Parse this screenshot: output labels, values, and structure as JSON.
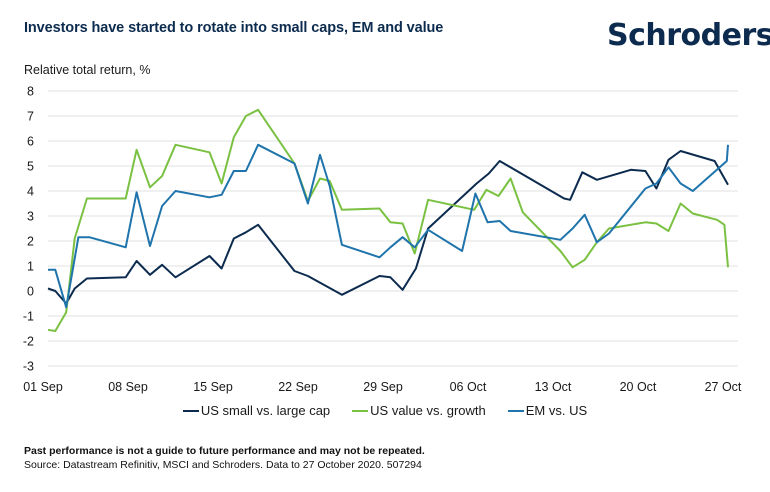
{
  "header": {
    "title": "Investors have started to rotate into small caps, EM and value",
    "logo": "Schroders"
  },
  "footer": {
    "disclaimer": "Past performance is not a guide to future performance and may not be repeated.",
    "source": "Source: Datastream Refinitiv, MSCI and Schroders. Data to 27 October 2020. 507294"
  },
  "chart_data": {
    "type": "line",
    "title": "Investors have started to rotate into small caps, EM and value",
    "xlabel": "",
    "ylabel": "Relative total return, %",
    "ylim": [
      -3,
      8
    ],
    "yticks": [
      8,
      7,
      6,
      5,
      4,
      3,
      2,
      1,
      0,
      -1,
      -2,
      -3
    ],
    "x_unit": "days since 01 Sep 2020",
    "xlim": [
      0,
      56
    ],
    "xticks": [
      {
        "day": 0,
        "label": "01 Sep"
      },
      {
        "day": 7,
        "label": "08 Sep"
      },
      {
        "day": 14,
        "label": "15 Sep"
      },
      {
        "day": 21,
        "label": "22 Sep"
      },
      {
        "day": 28,
        "label": "29 Sep"
      },
      {
        "day": 35,
        "label": "06 Oct"
      },
      {
        "day": 42,
        "label": "13 Oct"
      },
      {
        "day": 49,
        "label": "20 Oct"
      },
      {
        "day": 56,
        "label": "27 Oct"
      }
    ],
    "grid": true,
    "legend_position": "bottom-center",
    "series": [
      {
        "name": "US small vs. large cap",
        "color": "#0c2b4e",
        "points": [
          [
            0,
            0.1
          ],
          [
            0.6,
            0.0
          ],
          [
            1.5,
            -0.5
          ],
          [
            2.2,
            0.1
          ],
          [
            3.2,
            0.5
          ],
          [
            6.4,
            0.55
          ],
          [
            7.3,
            1.2
          ],
          [
            8.4,
            0.65
          ],
          [
            9.4,
            1.05
          ],
          [
            10.5,
            0.55
          ],
          [
            13.3,
            1.4
          ],
          [
            14.3,
            0.9
          ],
          [
            15.3,
            2.1
          ],
          [
            16.3,
            2.35
          ],
          [
            17.3,
            2.65
          ],
          [
            20.3,
            0.8
          ],
          [
            21.4,
            0.6
          ],
          [
            24.2,
            -0.15
          ],
          [
            27.3,
            0.6
          ],
          [
            28.2,
            0.55
          ],
          [
            29.2,
            0.05
          ],
          [
            30.3,
            0.9
          ],
          [
            31.3,
            2.5
          ],
          [
            35.3,
            4.3
          ],
          [
            36.3,
            4.7
          ],
          [
            37.2,
            5.2
          ],
          [
            42.5,
            3.7
          ],
          [
            43.0,
            3.65
          ],
          [
            44.0,
            4.75
          ],
          [
            45.2,
            4.45
          ],
          [
            48.0,
            4.85
          ],
          [
            49.2,
            4.8
          ],
          [
            50.1,
            4.1
          ],
          [
            51.1,
            5.25
          ],
          [
            52.1,
            5.6
          ],
          [
            54.9,
            5.2
          ],
          [
            56,
            4.25
          ]
        ]
      },
      {
        "name": "US value vs. growth",
        "color": "#7ac142",
        "points": [
          [
            0,
            -1.55
          ],
          [
            0.6,
            -1.6
          ],
          [
            1.5,
            -0.85
          ],
          [
            2.2,
            2.1
          ],
          [
            3.2,
            3.7
          ],
          [
            6.4,
            3.7
          ],
          [
            7.3,
            5.65
          ],
          [
            8.4,
            4.15
          ],
          [
            9.4,
            4.6
          ],
          [
            10.5,
            5.85
          ],
          [
            13.3,
            5.55
          ],
          [
            14.3,
            4.3
          ],
          [
            15.3,
            6.15
          ],
          [
            16.3,
            7.0
          ],
          [
            17.3,
            7.25
          ],
          [
            20.3,
            5.1
          ],
          [
            21.4,
            3.6
          ],
          [
            22.4,
            4.5
          ],
          [
            23.2,
            4.4
          ],
          [
            24.2,
            3.25
          ],
          [
            27.3,
            3.3
          ],
          [
            28.2,
            2.75
          ],
          [
            29.2,
            2.7
          ],
          [
            30.2,
            1.5
          ],
          [
            31.3,
            3.65
          ],
          [
            35.1,
            3.25
          ],
          [
            36.1,
            4.05
          ],
          [
            37.1,
            3.8
          ],
          [
            38.1,
            4.5
          ],
          [
            39.1,
            3.15
          ],
          [
            42.2,
            1.6
          ],
          [
            43.2,
            0.95
          ],
          [
            44.2,
            1.25
          ],
          [
            45.2,
            1.95
          ],
          [
            46.2,
            2.5
          ],
          [
            49.2,
            2.75
          ],
          [
            50.1,
            2.7
          ],
          [
            51.1,
            2.4
          ],
          [
            52.1,
            3.5
          ],
          [
            53.1,
            3.1
          ],
          [
            55.1,
            2.85
          ],
          [
            55.7,
            2.65
          ],
          [
            56,
            0.95
          ]
        ]
      },
      {
        "name": "EM vs. US",
        "color": "#1f74ac",
        "points": [
          [
            0,
            0.85
          ],
          [
            0.6,
            0.85
          ],
          [
            1.5,
            -0.65
          ],
          [
            2.5,
            2.15
          ],
          [
            3.4,
            2.15
          ],
          [
            6.4,
            1.75
          ],
          [
            7.3,
            3.95
          ],
          [
            8.4,
            1.8
          ],
          [
            9.4,
            3.4
          ],
          [
            10.5,
            4.0
          ],
          [
            13.3,
            3.75
          ],
          [
            14.3,
            3.85
          ],
          [
            15.3,
            4.8
          ],
          [
            16.3,
            4.8
          ],
          [
            17.3,
            5.85
          ],
          [
            20.3,
            5.1
          ],
          [
            21.4,
            3.5
          ],
          [
            22.4,
            5.45
          ],
          [
            23.2,
            4.2
          ],
          [
            24.2,
            1.85
          ],
          [
            27.3,
            1.35
          ],
          [
            28.2,
            1.75
          ],
          [
            29.2,
            2.15
          ],
          [
            30.2,
            1.75
          ],
          [
            31.3,
            2.45
          ],
          [
            34.1,
            1.6
          ],
          [
            35.2,
            3.9
          ],
          [
            36.2,
            2.75
          ],
          [
            37.2,
            2.8
          ],
          [
            38.1,
            2.4
          ],
          [
            42.2,
            2.05
          ],
          [
            43.2,
            2.5
          ],
          [
            44.2,
            3.05
          ],
          [
            45.2,
            1.95
          ],
          [
            46.2,
            2.3
          ],
          [
            49.2,
            4.1
          ],
          [
            50.1,
            4.3
          ],
          [
            51.1,
            4.95
          ],
          [
            52.1,
            4.3
          ],
          [
            53.1,
            4.0
          ],
          [
            55.9,
            5.2
          ],
          [
            56,
            5.85
          ]
        ]
      }
    ]
  }
}
